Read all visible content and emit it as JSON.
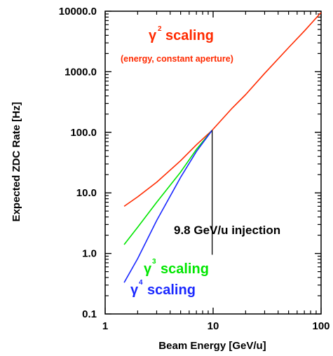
{
  "chart_data": {
    "type": "line",
    "xlabel": "Beam Energy [GeV/u]",
    "ylabel": "Expected ZDC Rate [Hz]",
    "xscale": "log",
    "yscale": "log",
    "xlim": [
      1,
      100
    ],
    "ylim": [
      0.1,
      10000
    ],
    "x_ticks": [
      "1",
      "10",
      "100"
    ],
    "y_ticks": [
      "0.1",
      "1.0",
      "10.0",
      "100.0",
      "1000.0",
      "10000.0"
    ],
    "series": [
      {
        "name": "γ² scaling",
        "color": "#ff2a00",
        "x": [
          1.5,
          2,
          3,
          5,
          7,
          9.8,
          15,
          20,
          30,
          50,
          70,
          100
        ],
        "y": [
          6.0,
          8.6,
          15,
          34,
          62,
          108,
          250,
          420,
          940,
          2500,
          4700,
          9500
        ]
      },
      {
        "name": "γ³ scaling",
        "color": "#00e600",
        "x": [
          1.5,
          2,
          3,
          5,
          7,
          9.8
        ],
        "y": [
          1.4,
          2.7,
          7.0,
          22,
          52,
          108
        ]
      },
      {
        "name": "γ⁴ scaling",
        "color": "#1a28ff",
        "x": [
          1.5,
          2,
          3,
          5,
          7,
          9.8
        ],
        "y": [
          0.33,
          0.82,
          3.5,
          18,
          48,
          108
        ]
      }
    ],
    "injection": {
      "x": 9.8,
      "y_from": 0.95,
      "y_to": 108,
      "label": "9.8 GeV/u injection"
    },
    "annotations": {
      "g2_gamma": "γ",
      "g2_exp": "2",
      "g2_text": "scaling",
      "g2_sub": "(energy, constant aperture)",
      "g3_gamma": "γ",
      "g3_exp": "3",
      "g3_text": "scaling",
      "g4_gamma": "γ",
      "g4_exp": "4",
      "g4_text": "scaling"
    }
  }
}
